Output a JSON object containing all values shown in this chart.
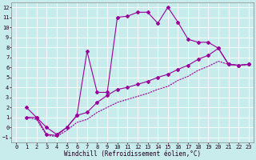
{
  "bg_color": "#c8ecec",
  "grid_color": "#ffffff",
  "line_color": "#990099",
  "xlim": [
    -0.5,
    23.5
  ],
  "ylim": [
    -1.5,
    12.5
  ],
  "xticks": [
    0,
    1,
    2,
    3,
    4,
    5,
    6,
    7,
    8,
    9,
    10,
    11,
    12,
    13,
    14,
    15,
    16,
    17,
    18,
    19,
    20,
    21,
    22,
    23
  ],
  "yticks": [
    -1,
    0,
    1,
    2,
    3,
    4,
    5,
    6,
    7,
    8,
    9,
    10,
    11,
    12
  ],
  "line1_x": [
    1,
    2,
    3,
    4,
    5,
    6,
    7,
    8,
    9,
    10,
    11,
    12,
    13,
    14,
    15,
    16,
    17,
    18,
    19,
    20,
    21,
    22,
    23
  ],
  "line1_y": [
    2.0,
    1.0,
    -0.7,
    -0.8,
    0.0,
    1.2,
    7.6,
    3.5,
    3.5,
    11.0,
    11.1,
    11.5,
    11.5,
    10.4,
    12.0,
    10.5,
    8.8,
    8.5,
    8.5,
    7.9,
    6.3,
    6.2,
    6.3
  ],
  "line2_x": [
    1,
    2,
    3,
    4,
    5,
    6,
    7,
    8,
    9,
    10,
    11,
    12,
    13,
    14,
    15,
    16,
    17,
    18,
    19,
    20,
    21,
    22,
    23
  ],
  "line2_y": [
    1.0,
    1.0,
    0.0,
    -0.7,
    0.0,
    1.2,
    1.5,
    2.5,
    3.2,
    3.8,
    4.0,
    4.3,
    4.6,
    5.0,
    5.3,
    5.8,
    6.2,
    6.8,
    7.2,
    7.9,
    6.3,
    6.2,
    6.3
  ],
  "line3_x": [
    1,
    2,
    3,
    4,
    5,
    6,
    7,
    8,
    9,
    10,
    11,
    12,
    13,
    14,
    15,
    16,
    17,
    18,
    19,
    20,
    21,
    22,
    23
  ],
  "line3_y": [
    1.0,
    0.8,
    -0.8,
    -0.9,
    -0.3,
    0.5,
    0.8,
    1.5,
    2.0,
    2.5,
    2.8,
    3.1,
    3.4,
    3.8,
    4.1,
    4.7,
    5.1,
    5.7,
    6.1,
    6.6,
    6.3,
    6.2,
    6.3
  ],
  "xlabel": "Windchill (Refroidissement éolien,°C)",
  "xlabel_fontsize": 5.5,
  "tick_fontsize": 5.0,
  "linewidth": 0.8,
  "markersize": 2.0
}
